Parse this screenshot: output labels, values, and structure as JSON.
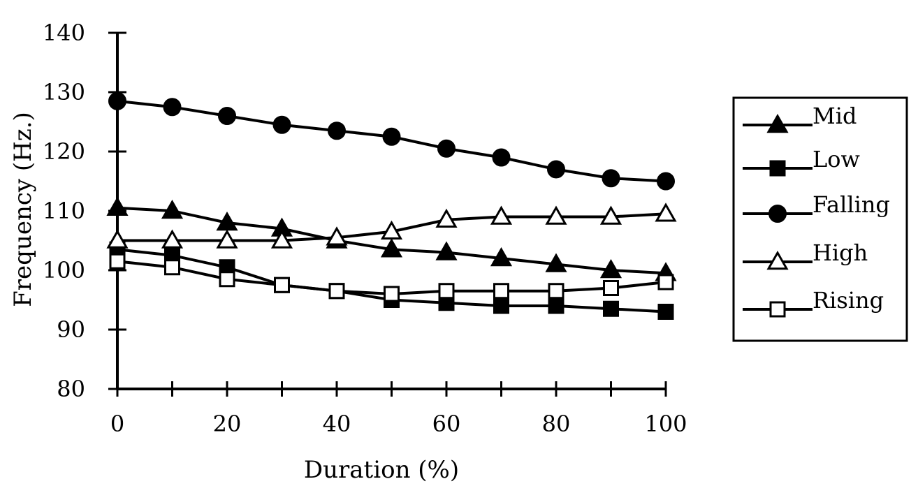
{
  "chart_data": {
    "type": "line",
    "title": "",
    "xlabel": "Duration (%)",
    "ylabel": "Frequency (Hz.)",
    "xlim": [
      0,
      100
    ],
    "ylim": [
      80,
      140
    ],
    "x_ticks": [
      0,
      20,
      40,
      60,
      80,
      100
    ],
    "y_ticks": [
      80,
      90,
      100,
      110,
      120,
      130,
      140
    ],
    "grid": false,
    "legend_position": "right",
    "x": [
      0,
      10,
      20,
      30,
      40,
      50,
      60,
      70,
      80,
      90,
      100
    ],
    "series": [
      {
        "name": "Mid",
        "marker": "filled-triangle",
        "values": [
          110.5,
          110,
          108,
          107,
          105,
          103.5,
          103,
          102,
          101,
          100,
          99.5
        ]
      },
      {
        "name": "Low",
        "marker": "filled-square",
        "values": [
          103.5,
          102.5,
          100.5,
          97.5,
          96.5,
          95,
          94.5,
          94,
          94,
          93.5,
          93
        ]
      },
      {
        "name": "Falling",
        "marker": "filled-circle",
        "values": [
          128.5,
          127.5,
          126,
          124.5,
          123.5,
          122.5,
          120.5,
          119,
          117,
          115.5,
          115
        ]
      },
      {
        "name": "High",
        "marker": "open-triangle",
        "values": [
          105,
          105,
          105,
          105,
          105.5,
          106.5,
          108.5,
          109,
          109,
          109,
          109.5
        ]
      },
      {
        "name": "Rising",
        "marker": "open-square",
        "values": [
          101.5,
          100.5,
          98.5,
          97.5,
          96.5,
          96,
          96.5,
          96.5,
          96.5,
          97,
          98
        ]
      }
    ]
  }
}
